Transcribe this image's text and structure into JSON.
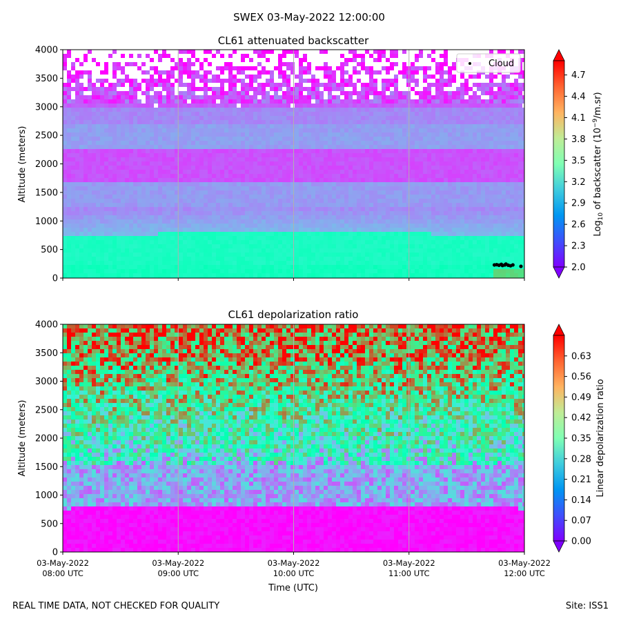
{
  "figure": {
    "suptitle": "SWEX 03-May-2022 12:00:00",
    "footer_left": "REAL TIME DATA, NOT CHECKED FOR QUALITY",
    "footer_right": "Site: ISS1"
  },
  "x_axis": {
    "label": "Time (UTC)",
    "ticks": [
      {
        "date": "03-May-2022",
        "time": "08:00 UTC",
        "hours": 0
      },
      {
        "date": "03-May-2022",
        "time": "09:00 UTC",
        "hours": 1
      },
      {
        "date": "03-May-2022",
        "time": "10:00 UTC",
        "hours": 2
      },
      {
        "date": "03-May-2022",
        "time": "11:00 UTC",
        "hours": 3
      },
      {
        "date": "03-May-2022",
        "time": "12:00 UTC",
        "hours": 4
      }
    ]
  },
  "colors": {
    "rainbow_min": "#7f00ff",
    "rainbow_max": "#ff0000",
    "grid": "#b0b0b0",
    "cloud_marker": "#000000"
  },
  "chart_data": [
    {
      "type": "heatmap",
      "title": "CL61 attenuated backscatter",
      "xlabel": "Time (UTC)",
      "ylabel": "Altitude (meters)",
      "xlim_hours": [
        0,
        4
      ],
      "ylim": [
        0,
        4000
      ],
      "yticks": [
        0,
        500,
        1000,
        1500,
        2000,
        2500,
        3000,
        3500,
        4000
      ],
      "colorbar": {
        "label_prefix": "Log",
        "label_sub": "10",
        "label_mid": " of backscatter (10",
        "label_sup": "−9",
        "label_suffix": "/m.sr)",
        "range": [
          2.0,
          4.9
        ],
        "ticks": [
          "2.0",
          "2.3",
          "2.6",
          "2.9",
          "3.2",
          "3.5",
          "3.8",
          "4.1",
          "4.4",
          "4.7"
        ],
        "extend": "both"
      },
      "legend": {
        "label": "Cloud",
        "location": "upper right"
      },
      "cloud_points": [
        {
          "t": 3.74,
          "alt": 230
        },
        {
          "t": 3.76,
          "alt": 235
        },
        {
          "t": 3.78,
          "alt": 225
        },
        {
          "t": 3.8,
          "alt": 240
        },
        {
          "t": 3.81,
          "alt": 220
        },
        {
          "t": 3.83,
          "alt": 230
        },
        {
          "t": 3.84,
          "alt": 245
        },
        {
          "t": 3.86,
          "alt": 225
        },
        {
          "t": 3.88,
          "alt": 215
        },
        {
          "t": 3.9,
          "alt": 230
        },
        {
          "t": 3.97,
          "alt": 205
        }
      ]
    },
    {
      "type": "heatmap",
      "title": "CL61 depolarization ratio",
      "xlabel": "Time (UTC)",
      "ylabel": "Altitude (meters)",
      "xlim_hours": [
        0,
        4
      ],
      "ylim": [
        0,
        4000
      ],
      "yticks": [
        0,
        500,
        1000,
        1500,
        2000,
        2500,
        3000,
        3500,
        4000
      ],
      "colorbar": {
        "label": "Linear depolarization ratio",
        "range": [
          0.0,
          0.7
        ],
        "ticks": [
          "0.00",
          "0.07",
          "0.14",
          "0.21",
          "0.28",
          "0.35",
          "0.42",
          "0.49",
          "0.56",
          "0.63"
        ],
        "extend": "both"
      }
    }
  ]
}
